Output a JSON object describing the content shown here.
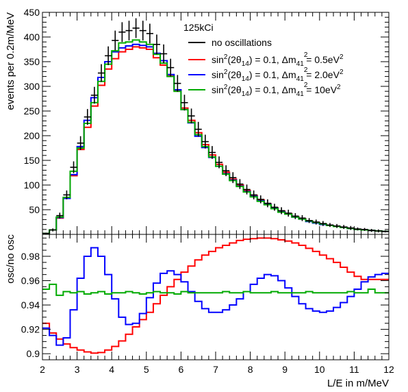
{
  "chart_data": [
    {
      "type": "line",
      "panel": "top",
      "style": "step-histogram",
      "ylabel": "events per 0.2m/MeV",
      "xlim": [
        2,
        12
      ],
      "ylim": [
        0,
        450
      ],
      "yticks": [
        50,
        100,
        150,
        200,
        250,
        300,
        350,
        400,
        450
      ],
      "bin_width": 0.2,
      "x": [
        2.0,
        2.2,
        2.4,
        2.6,
        2.8,
        3.0,
        3.2,
        3.4,
        3.6,
        3.8,
        4.0,
        4.2,
        4.4,
        4.6,
        4.8,
        5.0,
        5.2,
        5.4,
        5.6,
        5.8,
        6.0,
        6.2,
        6.4,
        6.6,
        6.8,
        7.0,
        7.2,
        7.4,
        7.6,
        7.8,
        8.0,
        8.2,
        8.4,
        8.6,
        8.8,
        9.0,
        9.2,
        9.4,
        9.6,
        9.8,
        10.0,
        10.2,
        10.4,
        10.6,
        10.8,
        11.0,
        11.2,
        11.4,
        11.6,
        11.8
      ],
      "legend": {
        "title": "125kCi",
        "placement": "top-right",
        "entries": [
          {
            "name": "no oscillations",
            "color": "#000000"
          },
          {
            "main": "sin",
            "sup1": "2",
            "mid1": "(2θ",
            "sub1": "14",
            "mid2": ") = 0.1, Δm",
            "sub2": "41",
            "sup2": "2",
            "tail": " = 0.5eV",
            "sup3": "2",
            "color": "#ff0000"
          },
          {
            "main": "sin",
            "sup1": "2",
            "mid1": "(2θ",
            "sub1": "14",
            "mid2": ") = 0.1, Δm",
            "sub2": "41",
            "sup2": "2",
            "tail": " = 2.0eV",
            "sup3": "2",
            "color": "#0000ff"
          },
          {
            "main": "sin",
            "sup1": "2",
            "mid1": "(2θ",
            "sub1": "14",
            "mid2": ") = 0.1, Δm",
            "sub2": "41",
            "sup2": "2",
            "tail": " = 10eV",
            "sup3": "2",
            "color": "#00aa00"
          }
        ]
      },
      "series": [
        {
          "name": "no oscillations",
          "color": "#000000",
          "style": "points-with-errors",
          "values": [
            2,
            9,
            38,
            80,
            136,
            185,
            238,
            282,
            327,
            362,
            393,
            410,
            413,
            418,
            413,
            407,
            385,
            366,
            338,
            306,
            267,
            240,
            213,
            188,
            166,
            146,
            129,
            115,
            102,
            91,
            80,
            71,
            63,
            55,
            48,
            43,
            37,
            33,
            28,
            25,
            22,
            19,
            17,
            15,
            13,
            11,
            10,
            8,
            7,
            6
          ],
          "errors": [
            1.5,
            3,
            6,
            9,
            12,
            14,
            16,
            17,
            18,
            19,
            20,
            20,
            20,
            20,
            20,
            20,
            20,
            19,
            18,
            17,
            16,
            15,
            15,
            14,
            13,
            12,
            11,
            11,
            10,
            10,
            9,
            8,
            8,
            7,
            7,
            7,
            6,
            6,
            5,
            5,
            5,
            4,
            4,
            4,
            4,
            3,
            3,
            3,
            3,
            2
          ]
        },
        {
          "name": "sin²(2θ14) = 0.1, Δm²41 = 0.5eV²",
          "color": "#ff0000",
          "values": [
            2,
            9,
            33,
            73,
            119,
            172,
            217,
            260,
            302,
            335,
            356,
            370,
            375,
            380,
            378,
            375,
            358,
            343,
            321,
            292,
            256,
            231,
            206,
            182,
            161,
            142,
            126,
            112,
            100,
            89,
            79,
            70,
            62,
            54,
            47,
            42,
            36,
            32,
            27,
            24,
            21,
            18,
            16,
            14,
            12,
            10,
            9,
            8,
            7,
            6
          ]
        },
        {
          "name": "sin²(2θ14) = 0.1, Δm²41 = 2.0eV²",
          "color": "#0000ff",
          "values": [
            2,
            9,
            34,
            73,
            121,
            178,
            231,
            277,
            318,
            350,
            370,
            378,
            382,
            385,
            383,
            380,
            367,
            352,
            324,
            293,
            253,
            226,
            199,
            176,
            156,
            138,
            123,
            110,
            98,
            87,
            77,
            68,
            61,
            53,
            46,
            41,
            35,
            31,
            26,
            23,
            20,
            18,
            16,
            14,
            12,
            10,
            9,
            8,
            7,
            6
          ]
        },
        {
          "name": "sin²(2θ14) = 0.1, Δm²41 = 10eV²",
          "color": "#00aa00",
          "values": [
            2,
            9,
            35,
            75,
            128,
            175,
            225,
            267,
            310,
            345,
            372,
            388,
            390,
            394,
            390,
            385,
            365,
            347,
            320,
            290,
            253,
            227,
            202,
            178,
            157,
            138,
            122,
            109,
            97,
            86,
            76,
            67,
            60,
            52,
            45,
            41,
            35,
            31,
            27,
            24,
            21,
            18,
            16,
            14,
            12,
            10,
            9,
            8,
            7,
            6
          ]
        }
      ]
    },
    {
      "type": "line",
      "panel": "bottom",
      "style": "step-histogram",
      "xlabel": "L/E in m/MeV",
      "ylabel": "osc/no osc",
      "xlim": [
        2,
        12
      ],
      "ylim": [
        0.895,
        0.998
      ],
      "yticks": [
        0.9,
        0.92,
        0.94,
        0.96,
        0.98
      ],
      "ytick_labels": [
        "0.9",
        "0.92",
        "0.94",
        "0.96",
        "0.98"
      ],
      "xticks": [
        2,
        3,
        4,
        5,
        6,
        7,
        8,
        9,
        10,
        11,
        12
      ],
      "xtick_labels": [
        "2",
        "3",
        "4",
        "5",
        "6",
        "7",
        "8",
        "9",
        "10",
        "11",
        "12"
      ],
      "bin_width": 0.2,
      "x": [
        2.0,
        2.2,
        2.4,
        2.6,
        2.8,
        3.0,
        3.2,
        3.4,
        3.6,
        3.8,
        4.0,
        4.2,
        4.4,
        4.6,
        4.8,
        5.0,
        5.2,
        5.4,
        5.6,
        5.8,
        6.0,
        6.2,
        6.4,
        6.6,
        6.8,
        7.0,
        7.2,
        7.4,
        7.6,
        7.8,
        8.0,
        8.2,
        8.4,
        8.6,
        8.8,
        9.0,
        9.2,
        9.4,
        9.6,
        9.8,
        10.0,
        10.2,
        10.4,
        10.6,
        10.8,
        11.0,
        11.2,
        11.4,
        11.6,
        11.8
      ],
      "series": [
        {
          "name": "sin²(2θ14) = 0.1, Δm²41 = 0.5eV²",
          "color": "#ff0000",
          "values": [
            0.925,
            0.917,
            0.912,
            0.908,
            0.905,
            0.903,
            0.9015,
            0.9005,
            0.901,
            0.903,
            0.906,
            0.9105,
            0.916,
            0.922,
            0.928,
            0.934,
            0.941,
            0.948,
            0.955,
            0.961,
            0.967,
            0.972,
            0.977,
            0.981,
            0.984,
            0.987,
            0.989,
            0.991,
            0.993,
            0.994,
            0.9945,
            0.995,
            0.995,
            0.9945,
            0.9935,
            0.9925,
            0.991,
            0.989,
            0.9865,
            0.984,
            0.981,
            0.978,
            0.975,
            0.971,
            0.967,
            0.9635,
            0.961,
            0.961,
            0.961,
            0.961
          ]
        },
        {
          "name": "sin²(2θ14) = 0.1, Δm²41 = 2.0eV²",
          "color": "#0000ff",
          "values": [
            0.921,
            0.915,
            0.907,
            0.913,
            0.936,
            0.962,
            0.98,
            0.987,
            0.98,
            0.965,
            0.945,
            0.93,
            0.924,
            0.925,
            0.933,
            0.946,
            0.958,
            0.966,
            0.968,
            0.965,
            0.959,
            0.951,
            0.943,
            0.937,
            0.934,
            0.934,
            0.936,
            0.94,
            0.945,
            0.951,
            0.957,
            0.962,
            0.965,
            0.964,
            0.96,
            0.954,
            0.947,
            0.941,
            0.937,
            0.935,
            0.934,
            0.935,
            0.938,
            0.942,
            0.947,
            0.953,
            0.959,
            0.963,
            0.965,
            0.966
          ]
        },
        {
          "name": "sin²(2θ14) = 0.1, Δm²41 = 10eV²",
          "color": "#00aa00",
          "values": [
            0.953,
            0.957,
            0.948,
            0.951,
            0.95,
            0.951,
            0.949,
            0.95,
            0.951,
            0.949,
            0.95,
            0.95,
            0.951,
            0.95,
            0.949,
            0.95,
            0.951,
            0.95,
            0.95,
            0.949,
            0.951,
            0.95,
            0.95,
            0.95,
            0.95,
            0.95,
            0.951,
            0.95,
            0.95,
            0.951,
            0.95,
            0.95,
            0.95,
            0.951,
            0.95,
            0.95,
            0.95,
            0.95,
            0.951,
            0.95,
            0.95,
            0.95,
            0.95,
            0.95,
            0.951,
            0.95,
            0.95,
            0.953,
            0.95,
            0.95
          ]
        }
      ]
    }
  ]
}
